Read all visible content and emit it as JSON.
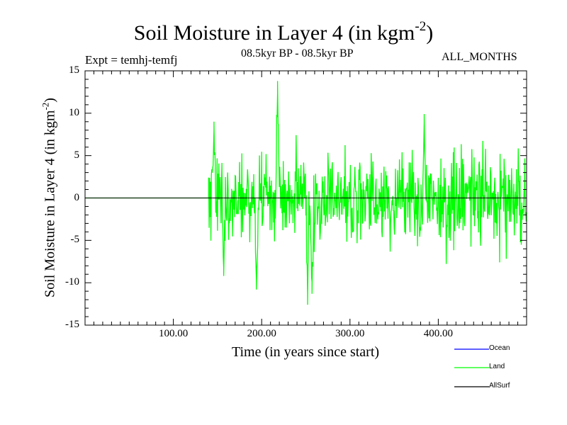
{
  "chart_data": {
    "type": "line",
    "title_main": "Soil Moisture in Layer 4 (in kgm",
    "title_exp": "-2",
    "title_close": ")",
    "subtitle_left": "Expt = temhj-temfj",
    "subtitle_center": "08.5kyr BP - 08.5kyr BP",
    "subtitle_right": "ALL_MONTHS",
    "xlabel": "Time (in years since start)",
    "ylabel_main": "Soil Moisture in Layer 4 (in kgm",
    "ylabel_exp": "-2",
    "ylabel_close": ")",
    "xlim": [
      0,
      500
    ],
    "ylim": [
      -15,
      15
    ],
    "x_ticks": [
      {
        "value": 100,
        "label": "100.00"
      },
      {
        "value": 200,
        "label": "200.00"
      },
      {
        "value": 300,
        "label": "300.00"
      },
      {
        "value": 400,
        "label": "400.00"
      }
    ],
    "y_ticks": [
      {
        "value": 15,
        "label": "15"
      },
      {
        "value": 10,
        "label": "10"
      },
      {
        "value": 5,
        "label": "5"
      },
      {
        "value": 0,
        "label": "0"
      },
      {
        "value": -5,
        "label": "-5"
      },
      {
        "value": -10,
        "label": "-10"
      },
      {
        "value": -15,
        "label": "-15"
      }
    ],
    "zero_line": true,
    "series": [
      {
        "name": "Ocean",
        "color": "#0000ff",
        "values": []
      },
      {
        "name": "Land",
        "color": "#00ff00",
        "start_year": 140,
        "flat_value_before_start": 0,
        "end_year": 500,
        "peaks": [
          {
            "x": 146,
            "y": 9.0
          },
          {
            "x": 157,
            "y": -9.2
          },
          {
            "x": 194,
            "y": -10.8
          },
          {
            "x": 218,
            "y": 13.8
          },
          {
            "x": 252,
            "y": -12.6
          },
          {
            "x": 257,
            "y": -11.3
          },
          {
            "x": 384,
            "y": 9.9
          }
        ]
      },
      {
        "name": "AllSurf",
        "color": "#000000",
        "values": []
      }
    ],
    "legend": [
      {
        "label": "Ocean",
        "color": "#0000ff"
      },
      {
        "label": "Land",
        "color": "#00ff00"
      },
      {
        "label": "AllSurf",
        "color": "#000000"
      }
    ]
  }
}
